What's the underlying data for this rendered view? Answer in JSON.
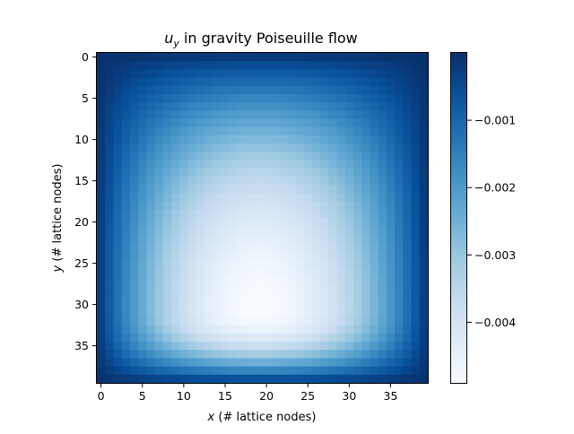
{
  "chart_data": {
    "type": "heatmap",
    "title_var": "u",
    "title_sub": "y",
    "title_rest": " in gravity Poiseuille flow",
    "xlabel_var": "x",
    "xlabel_rest": " (# lattice nodes)",
    "ylabel_var": "y",
    "ylabel_rest": " (# lattice nodes)",
    "grid_size": [
      40,
      40
    ],
    "xlim": [
      -0.5,
      39.5
    ],
    "ylim": [
      39.5,
      -0.5
    ],
    "x_ticks": [
      0,
      5,
      10,
      15,
      20,
      25,
      30,
      35
    ],
    "y_ticks": [
      0,
      5,
      10,
      15,
      20,
      25,
      30,
      35
    ],
    "colormap": "Blues_r",
    "colorbar": {
      "vmin": -0.0049,
      "vmax": -0.0,
      "ticks": [
        -0.001,
        -0.002,
        -0.003,
        -0.004
      ],
      "tick_labels": [
        "−0.001",
        "−0.002",
        "−0.003",
        "−0.004"
      ]
    },
    "field": {
      "min_value": -0.0049,
      "min_location": [
        19,
        31
      ],
      "description_note": "wall value near 0, minimum in lower-center"
    }
  }
}
